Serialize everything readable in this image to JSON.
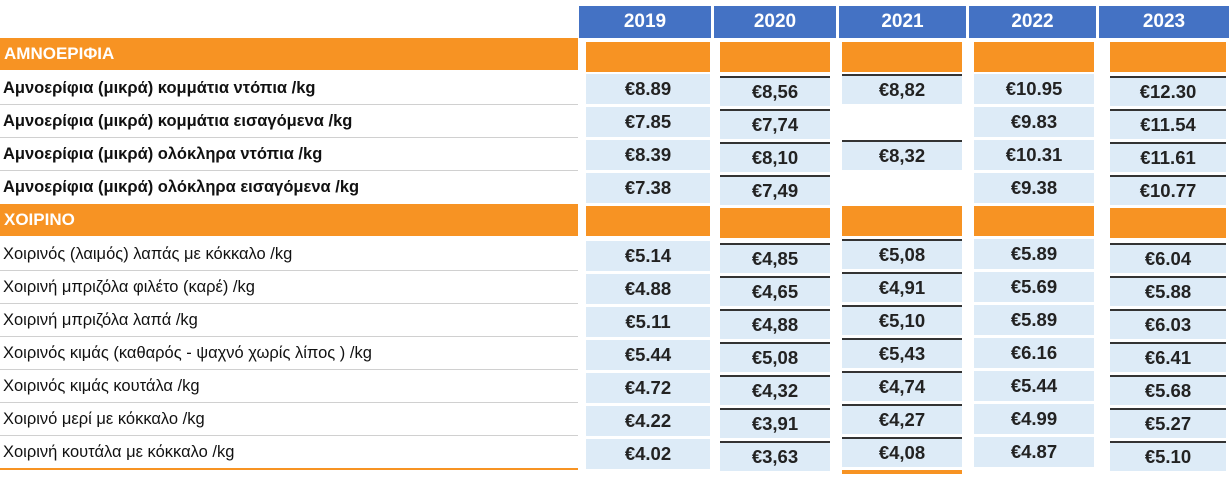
{
  "years": [
    "2019",
    "2020",
    "2021",
    "2022",
    "2023"
  ],
  "sections": [
    {
      "title": "ΑΜΝΟΕΡΙΦΙΑ",
      "rows": [
        {
          "label": "Αμνοερίφια (μικρά) κομμάτια ντόπια /kg",
          "values": [
            "€8.89",
            "€8,56",
            "€8,82",
            "€10.95",
            "€12.30"
          ]
        },
        {
          "label": "Αμνοερίφια (μικρά) κομμάτια εισαγόμενα /kg",
          "values": [
            "€7.85",
            "€7,74",
            "",
            "€9.83",
            "€11.54"
          ]
        },
        {
          "label": "Αμνοερίφια (μικρά) ολόκληρα ντόπια /kg",
          "values": [
            "€8.39",
            "€8,10",
            "€8,32",
            "€10.31",
            "€11.61"
          ]
        },
        {
          "label": "Αμνοερίφια (μικρά) ολόκληρα εισαγόμενα /kg",
          "values": [
            "€7.38",
            "€7,49",
            "",
            "€9.38",
            "€10.77"
          ]
        }
      ]
    },
    {
      "title": "ΧΟΙΡΙΝΟ",
      "rows": [
        {
          "label": "Χοιρινός (λαιμός) λαπάς με κόκκαλο /kg",
          "values": [
            "€5.14",
            "€4,85",
            "€5,08",
            "€5.89",
            "€6.04"
          ]
        },
        {
          "label": "Χοιρινή μπριζόλα φιλέτο (καρέ) /kg",
          "values": [
            "€4.88",
            "€4,65",
            "€4,91",
            "€5.69",
            "€5.88"
          ]
        },
        {
          "label": "Χοιρινή μπριζόλα λαπά /kg",
          "values": [
            "€5.11",
            "€4,88",
            "€5,10",
            "€5.89",
            "€6.03"
          ]
        },
        {
          "label": "Χοιρινός κιμάς (καθαρός - ψαχνό χωρίς λίπος ) /kg",
          "values": [
            "€5.44",
            "€5,08",
            "€5,43",
            "€6.16",
            "€6.41"
          ]
        },
        {
          "label": "Χοιρινός κιμάς κουτάλα /kg",
          "values": [
            "€4.72",
            "€4,32",
            "€4,74",
            "€5.44",
            "€5.68"
          ]
        },
        {
          "label": "Χοιρινό μερί με κόκκαλο /kg",
          "values": [
            "€4.22",
            "€3,91",
            "€4,27",
            "€4.99",
            "€5.27"
          ]
        },
        {
          "label": "Χοιρινή κουτάλα με κόκκαλο /kg",
          "values": [
            "€4.02",
            "€3,63",
            "€4,08",
            "€4.87",
            "€5.10"
          ]
        }
      ]
    }
  ]
}
